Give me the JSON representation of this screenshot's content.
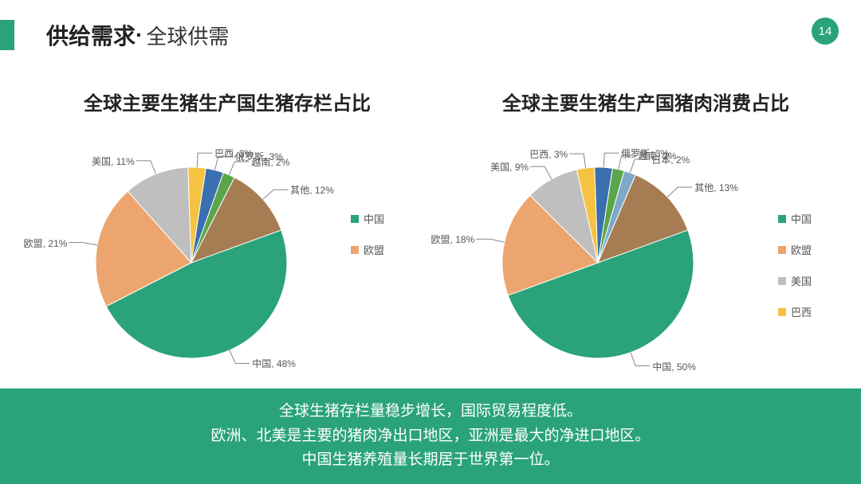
{
  "header": {
    "title_bold": "供给需求",
    "separator": " · ",
    "title_light": "全球供需"
  },
  "page_number": "14",
  "accent_color": "#2aa37a",
  "chart_left": {
    "title": "全球主要生猪生产国生猪存栏占比",
    "type": "pie",
    "slices": [
      {
        "label": "中国",
        "value": 48,
        "color": "#2aa37a",
        "label_text": "中国, 48%"
      },
      {
        "label": "欧盟",
        "value": 21,
        "color": "#eda56f",
        "label_text": "欧盟, 21%"
      },
      {
        "label": "美国",
        "value": 11,
        "color": "#bfbfbf",
        "label_text": "美国, 11%"
      },
      {
        "label": "巴西",
        "value": 3,
        "color": "#f6c242",
        "label_text": "巴西, 3%"
      },
      {
        "label": "俄罗斯",
        "value": 3,
        "color": "#3a6fb0",
        "label_text": "俄罗斯, 3%"
      },
      {
        "label": "越南",
        "value": 2,
        "color": "#5aa54a",
        "label_text": "越南, 2%"
      },
      {
        "label": "其他",
        "value": 12,
        "color": "#a67c52",
        "label_text": "其他, 12%"
      }
    ],
    "legend": [
      {
        "label": "中国",
        "color": "#2aa37a",
        "text": "中国"
      },
      {
        "label": "欧盟",
        "color": "#eda56f",
        "text": "欧盟"
      }
    ]
  },
  "chart_right": {
    "title": "全球主要生猪生产国猪肉消费占比",
    "type": "pie",
    "slices": [
      {
        "label": "中国",
        "value": 50,
        "color": "#2aa37a",
        "label_text": "中国, 50%"
      },
      {
        "label": "欧盟",
        "value": 18,
        "color": "#eda56f",
        "label_text": "欧盟, 18%"
      },
      {
        "label": "美国",
        "value": 9,
        "color": "#bfbfbf",
        "label_text": "美国, 9%"
      },
      {
        "label": "巴西",
        "value": 3,
        "color": "#f6c242",
        "label_text": "巴西, 3%"
      },
      {
        "label": "俄罗斯",
        "value": 3,
        "color": "#3a6fb0",
        "label_text": "俄罗斯, 3%"
      },
      {
        "label": "越南",
        "value": 2,
        "color": "#5aa54a",
        "label_text": "越南, 2%"
      },
      {
        "label": "日本",
        "value": 2,
        "color": "#7fa8c9",
        "label_text": "日本, 2%"
      },
      {
        "label": "其他",
        "value": 13,
        "color": "#a67c52",
        "label_text": "其他, 13%"
      }
    ],
    "legend": [
      {
        "label": "中国",
        "color": "#2aa37a",
        "text": "中国"
      },
      {
        "label": "欧盟",
        "color": "#eda56f",
        "text": "欧盟"
      },
      {
        "label": "美国",
        "color": "#bfbfbf",
        "text": "美国"
      },
      {
        "label": "巴西",
        "color": "#f6c242",
        "text": "巴西"
      }
    ]
  },
  "footer": {
    "line1": "全球生猪存栏量稳步增长，国际贸易程度低。",
    "line2": "欧洲、北美是主要的猪肉净出口地区，亚洲是最大的净进口地区。",
    "line3": "中国生猪养殖量长期居于世界第一位。"
  },
  "pie_style": {
    "radius": 120,
    "start_angle_deg": 70,
    "stroke": "#ffffff",
    "stroke_width": 1,
    "label_fontsize": 12,
    "label_color": "#555555"
  }
}
